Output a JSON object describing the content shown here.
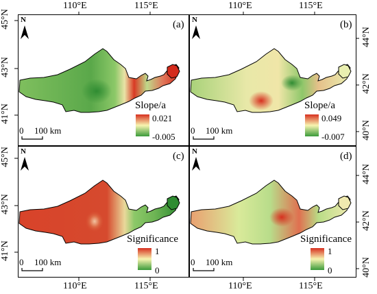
{
  "axes": {
    "top_lon": [
      "110°E",
      "115°E"
    ],
    "bottom_lon": [
      "110°E",
      "115°E"
    ],
    "left_lat_top": [
      "45°N",
      "43°N",
      "41°N"
    ],
    "left_lat_bottom": [
      "45°N",
      "43°N",
      "41°N"
    ],
    "right_lat_top": [
      "44°N",
      "42°N",
      "40°N"
    ],
    "right_lat_bottom": [
      "44°N",
      "42°N",
      "40°N"
    ]
  },
  "panels": [
    {
      "letter": "(a)",
      "legend": {
        "title": "Slope/a",
        "max": "0.021",
        "min": "-0.005"
      },
      "palette": "slope-a"
    },
    {
      "letter": "(b)",
      "legend": {
        "title": "Slope/a",
        "max": "0.049",
        "min": "-0.007"
      },
      "palette": "slope-b"
    },
    {
      "letter": "(c)",
      "legend": {
        "title": "Significance",
        "max": "1",
        "min": "0"
      },
      "palette": "sig-c"
    },
    {
      "letter": "(d)",
      "legend": {
        "title": "Significance",
        "max": "1",
        "min": "0"
      },
      "palette": "sig-d"
    }
  ],
  "north_label": "N",
  "scalebar": {
    "zero": "0",
    "label": "100 km"
  },
  "colors": {
    "red": "#d7301f",
    "yellow": "#f7f4b0",
    "green": "#3a9a3a"
  }
}
